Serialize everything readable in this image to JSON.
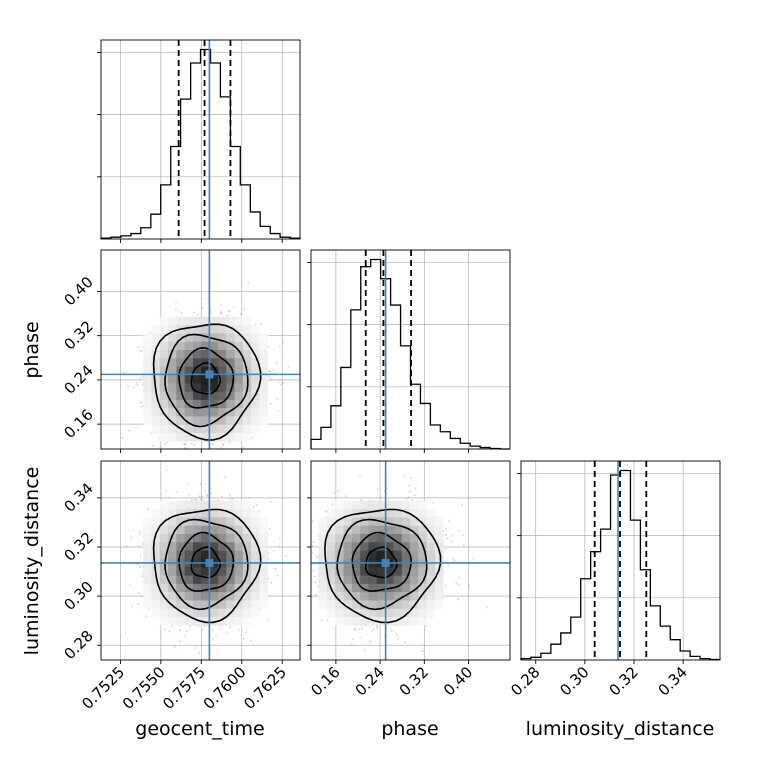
{
  "chart_data": {
    "type": "corner",
    "parameters": [
      "geocent_time",
      "phase",
      "luminosity_distance"
    ],
    "axis_labels": {
      "geocent_time": "geocent_time",
      "phase": "phase",
      "luminosity_distance": "luminosity_distance"
    },
    "ranges": {
      "geocent_time": [
        0.7513,
        0.7636
      ],
      "phase": [
        0.115,
        0.475
      ],
      "luminosity_distance": [
        0.274,
        0.355
      ]
    },
    "ticks": {
      "geocent_time": [
        0.7525,
        0.755,
        0.7575,
        0.76,
        0.7625
      ],
      "phase": [
        0.16,
        0.24,
        0.32,
        0.4
      ],
      "luminosity_distance": [
        0.28,
        0.3,
        0.32,
        0.34
      ]
    },
    "tick_labels": {
      "geocent_time": [
        "0.7525",
        "0.7550",
        "0.7575",
        "0.7600",
        "0.7625"
      ],
      "phase": [
        "0.16",
        "0.24",
        "0.32",
        "0.40"
      ],
      "luminosity_distance": [
        "0.28",
        "0.30",
        "0.32",
        "0.34"
      ]
    },
    "truths": {
      "geocent_time": 0.758,
      "phase": 0.25,
      "luminosity_distance": 0.3135
    },
    "quantiles": {
      "geocent_time": [
        0.7561,
        0.7577,
        0.7593
      ],
      "phase": [
        0.214,
        0.246,
        0.296
      ],
      "luminosity_distance": [
        0.304,
        0.3143,
        0.325
      ]
    },
    "histograms": {
      "geocent_time": {
        "bin_edges": [
          0.7513,
          0.75192,
          0.75253,
          0.75315,
          0.75376,
          0.75438,
          0.75499,
          0.75561,
          0.75622,
          0.75684,
          0.75745,
          0.75807,
          0.75868,
          0.7593,
          0.75991,
          0.76053,
          0.76114,
          0.76176,
          0.76237,
          0.76299,
          0.7636
        ],
        "counts": [
          2,
          4,
          7,
          12,
          25,
          55,
          120,
          205,
          310,
          390,
          420,
          390,
          315,
          205,
          120,
          60,
          28,
          12,
          4,
          2
        ]
      },
      "phase": {
        "bin_edges": [
          0.115,
          0.133,
          0.151,
          0.169,
          0.187,
          0.205,
          0.223,
          0.241,
          0.259,
          0.277,
          0.295,
          0.313,
          0.331,
          0.349,
          0.367,
          0.385,
          0.403,
          0.421,
          0.439,
          0.457,
          0.475
        ],
        "counts": [
          20,
          45,
          90,
          170,
          290,
          380,
          395,
          355,
          300,
          215,
          135,
          95,
          50,
          36,
          22,
          12,
          6,
          3,
          1,
          0
        ]
      },
      "luminosity_distance": {
        "bin_edges": [
          0.274,
          0.27805,
          0.2821,
          0.28615,
          0.2902,
          0.29425,
          0.2983,
          0.30235,
          0.3064,
          0.31045,
          0.3145,
          0.31855,
          0.3226,
          0.32665,
          0.3307,
          0.33475,
          0.3388,
          0.34285,
          0.3469,
          0.35095,
          0.355
        ],
        "counts": [
          3,
          6,
          15,
          35,
          60,
          95,
          180,
          240,
          290,
          410,
          420,
          310,
          200,
          120,
          75,
          45,
          20,
          8,
          3,
          1
        ]
      }
    },
    "pairs": [
      {
        "x": "geocent_time",
        "y": "phase"
      },
      {
        "x": "geocent_time",
        "y": "luminosity_distance"
      },
      {
        "x": "phase",
        "y": "luminosity_distance"
      }
    ],
    "grid": true,
    "colors": {
      "histogram": "#000000",
      "quantile_lines": "#000000",
      "truth": "#4682b4",
      "scatter": "#9a9a9a",
      "grid": "#b0b0b0"
    }
  }
}
